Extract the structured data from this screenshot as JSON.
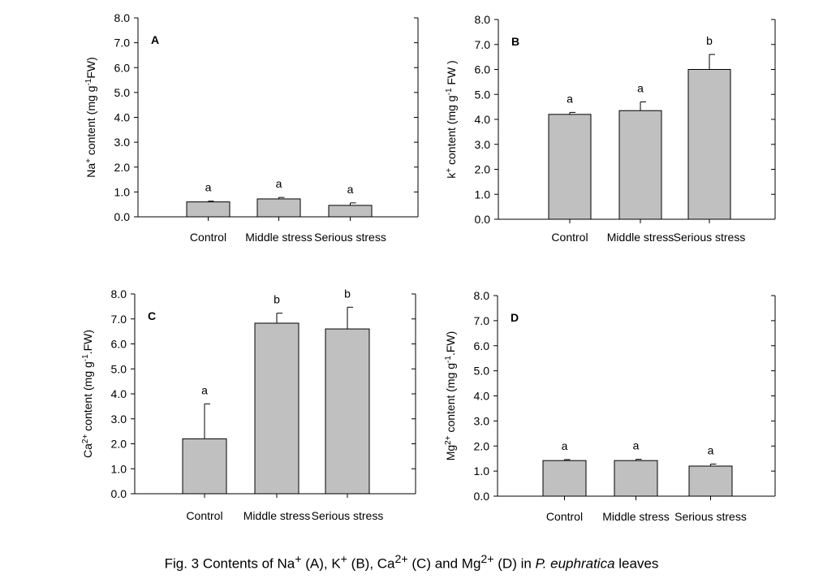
{
  "chart_data": [
    {
      "type": "bar",
      "panel": "A",
      "ylabel": "Na+ content (mg g-1FW)",
      "ylabel_parts": {
        "base": "Na",
        "sup": "+",
        "mid": " content (mg g",
        "sup2": "-1",
        "end": "FW)"
      },
      "categories": [
        "Control",
        "Middle stress",
        "Serious stress"
      ],
      "values": [
        0.6,
        0.72,
        0.46
      ],
      "errors": [
        0.03,
        0.06,
        0.1
      ],
      "letters": [
        "a",
        "a",
        "a"
      ],
      "ylim": [
        0,
        8
      ],
      "yticks": [
        "0.0",
        "1.0",
        "2.0",
        "3.0",
        "4.0",
        "5.0",
        "6.0",
        "7.0",
        "8.0"
      ]
    },
    {
      "type": "bar",
      "panel": "B",
      "ylabel": "k+ content (mg g-1 FW )",
      "ylabel_parts": {
        "base": "k",
        "sup": "+",
        "mid": " content (mg g",
        "sup2": "-1",
        "end": " FW )"
      },
      "categories": [
        "Control",
        "Middle stress",
        "Serious stress"
      ],
      "values": [
        4.2,
        4.35,
        6.0
      ],
      "errors": [
        0.08,
        0.35,
        0.6
      ],
      "letters": [
        "a",
        "a",
        "b"
      ],
      "ylim": [
        0,
        8
      ],
      "yticks": [
        "0.0",
        "1.0",
        "2.0",
        "3.0",
        "4.0",
        "5.0",
        "6.0",
        "7.0",
        "8.0"
      ]
    },
    {
      "type": "bar",
      "panel": "C",
      "ylabel": "Ca2+ content (mg g-1.FW)",
      "ylabel_parts": {
        "base": "Ca",
        "sup": "2+",
        "mid": " content (mg g",
        "sup2": "-1",
        "end": ".FW)"
      },
      "categories": [
        "Control",
        "Middle stress",
        "Serious stress"
      ],
      "values": [
        2.2,
        6.83,
        6.6
      ],
      "errors": [
        1.4,
        0.4,
        0.87
      ],
      "letters": [
        "a",
        "b",
        "b"
      ],
      "ylim": [
        0,
        8
      ],
      "yticks": [
        "0.0",
        "1.0",
        "2.0",
        "3.0",
        "4.0",
        "5.0",
        "6.0",
        "7.0",
        "8.0"
      ]
    },
    {
      "type": "bar",
      "panel": "D",
      "ylabel": "Mg2+ content (mg g-1.FW)",
      "ylabel_parts": {
        "base": "Mg",
        "sup": "2+",
        "mid": " content (mg g",
        "sup2": "-1",
        "end": ".FW)"
      },
      "categories": [
        "Control",
        "Middle stress",
        "Serious stress"
      ],
      "values": [
        1.42,
        1.42,
        1.2
      ],
      "errors": [
        0.04,
        0.05,
        0.08
      ],
      "letters": [
        "a",
        "a",
        "a"
      ],
      "ylim": [
        0,
        8
      ],
      "yticks": [
        "0.0",
        "1.0",
        "2.0",
        "3.0",
        "4.0",
        "5.0",
        "6.0",
        "7.0",
        "8.0"
      ]
    }
  ],
  "caption": {
    "prefix": "Fig. 3 Contents of Na",
    "s1": "+",
    "t1": " (A), K",
    "s2": "+",
    "t2": " (B), Ca",
    "s3": "2+",
    "t3": " (C) and Mg",
    "s4": "2+",
    "t4": " (D) in ",
    "italic": "P. euphratica",
    "t5": " leaves"
  },
  "colors": {
    "bar": "#c0c0c0",
    "axis": "#000000",
    "letter": "#000000",
    "letter_b_c": "#1f3a93"
  }
}
